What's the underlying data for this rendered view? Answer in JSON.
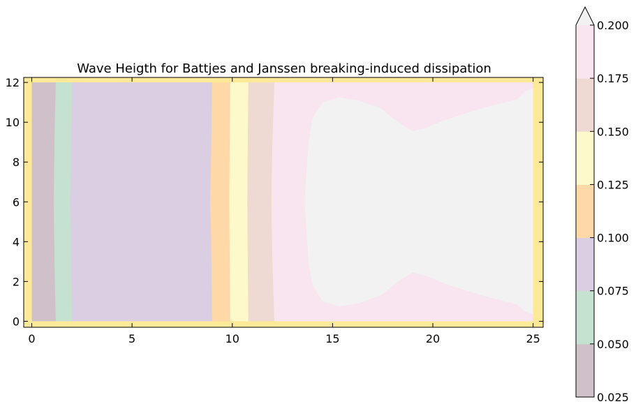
{
  "chart_data": {
    "type": "contourf",
    "title": "Wave Heigth for Battjes and Janssen breaking-induced dissipation",
    "xlabel": "",
    "ylabel": "",
    "xlim": [
      -0.4,
      25.5
    ],
    "ylim": [
      -0.3,
      12.25
    ],
    "x_ticks": [
      0,
      5,
      10,
      15,
      20,
      25
    ],
    "y_ticks": [
      0,
      2,
      4,
      6,
      8,
      10,
      12
    ],
    "grid": false,
    "colorbar": {
      "levels": [
        0.025,
        0.05,
        0.075,
        0.1,
        0.125,
        0.15,
        0.175,
        0.2
      ],
      "tick_labels": [
        "0.025",
        "0.050",
        "0.075",
        "0.100",
        "0.125",
        "0.150",
        "0.175",
        "0.200"
      ],
      "extend": "max",
      "colors": [
        "#d0c0ca",
        "#c5e2d0",
        "#dacfe2",
        "#fed8a6",
        "#fdf9cb",
        "#eedad2",
        "#f8e5ef",
        "#f2f2f2"
      ]
    },
    "regions": [
      {
        "band": "0.025-0.050",
        "x_from": 0.0,
        "x_to": 1.2,
        "y_from": 0,
        "y_to": 12
      },
      {
        "band": "0.050-0.075",
        "x_from": 1.2,
        "x_to": 2.0,
        "y_from": 0,
        "y_to": 12
      },
      {
        "band": "0.075-0.100",
        "x_from": 2.0,
        "x_to": 9.0,
        "y_from": 0,
        "y_to": 12
      },
      {
        "band": "0.100-0.125",
        "x_from": 9.0,
        "x_to": 9.9,
        "y_from": 0,
        "y_to": 12
      },
      {
        "band": "0.125-0.150",
        "x_from": 9.9,
        "x_to": 10.8,
        "y_from": 0,
        "y_to": 12
      },
      {
        "band": "0.150-0.175",
        "x_from": 10.8,
        "x_to": 12.1,
        "y_from": 0,
        "y_to": 12
      },
      {
        "band": "0.175-0.200",
        "x_from": 12.1,
        "x_to": 25.0,
        "y_from": 0,
        "y_to": 12
      },
      {
        "band": ">0.200",
        "x_from": 13.6,
        "x_to": 25.0,
        "y_from": 0.8,
        "y_to": 11.3
      }
    ]
  }
}
